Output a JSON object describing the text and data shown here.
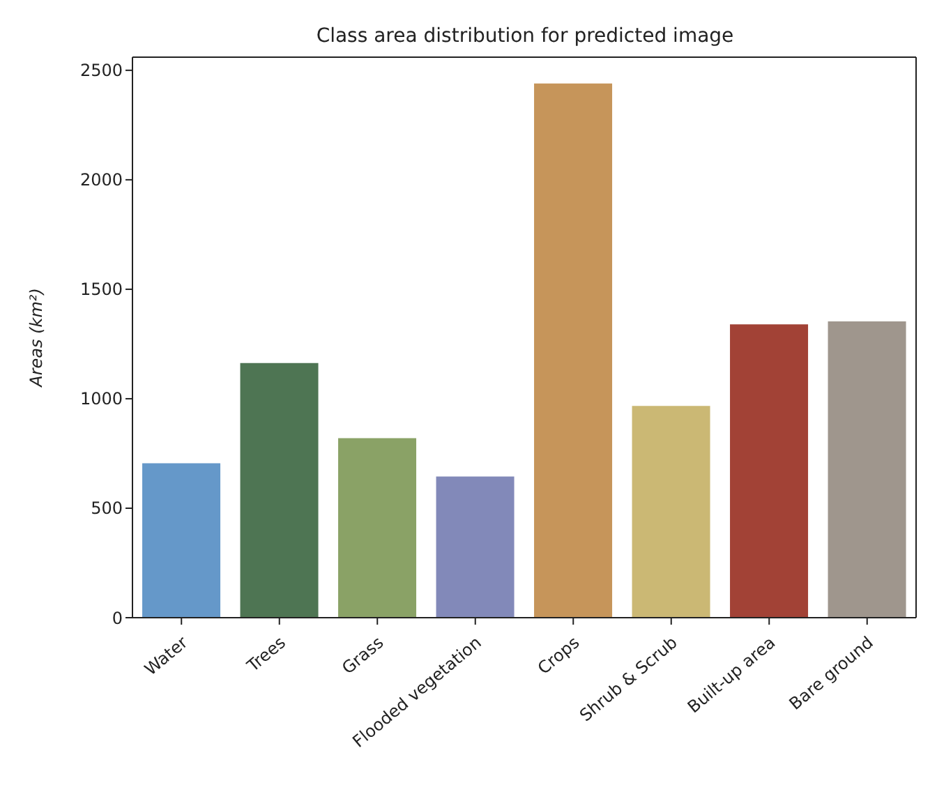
{
  "chart_data": {
    "type": "bar",
    "title": "Class area distribution for predicted image",
    "ylabel": "Areas (km²)",
    "categories": [
      "Water",
      "Trees",
      "Grass",
      "Flooded vegetation",
      "Crops",
      "Shrub & Scrub",
      "Built-up area",
      "Bare ground"
    ],
    "values": [
      705,
      1163,
      820,
      645,
      2440,
      967,
      1340,
      1353
    ],
    "colors": [
      "#6598c9",
      "#4e7553",
      "#8aa266",
      "#8289b9",
      "#c6955a",
      "#cbb874",
      "#a24236",
      "#9f968d"
    ],
    "ylim": [
      0,
      2560
    ],
    "yticks": [
      0,
      500,
      1000,
      1500,
      2000,
      2500
    ],
    "grid": false,
    "legend": false
  }
}
